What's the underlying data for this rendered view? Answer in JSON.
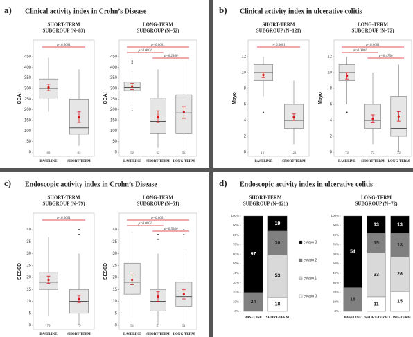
{
  "chart_data": [
    {
      "type": "box",
      "label": "a)",
      "title": "Clinical activity index in Crohn’s Disease",
      "box_color": "#e6e6e6",
      "mean_color": "#d7191c",
      "comparison_color": "#d7191c",
      "subplots": [
        {
          "subtitle": [
            "SHORT-TERM",
            "SUBGROUP (N=83)"
          ],
          "ylabel": "CDAI",
          "ylim": [
            0,
            450
          ],
          "yticks": [
            0,
            50,
            100,
            150,
            200,
            250,
            300,
            350,
            400,
            450
          ],
          "categories": [
            "BASELINE",
            "SHORT-TERM"
          ],
          "n": [
            83,
            83
          ],
          "boxes": [
            {
              "whislo": 190,
              "q1": 255,
              "med": 300,
              "q3": 345,
              "whishi": 445,
              "mean": 305,
              "mean_ci": [
                290,
                320
              ],
              "fliers": []
            },
            {
              "whislo": 30,
              "q1": 85,
              "med": 115,
              "q3": 250,
              "whishi": 390,
              "mean": 165,
              "mean_ci": [
                140,
                190
              ],
              "fliers": []
            }
          ],
          "comparisons": [
            {
              "label": "p<0.0001",
              "pair": [
                0,
                1
              ]
            }
          ]
        },
        {
          "subtitle": [
            "LONG-TERM",
            "SUBGROUP (N=52)"
          ],
          "ylabel": "CDAI",
          "ylim": [
            0,
            450
          ],
          "yticks": [
            0,
            50,
            100,
            150,
            200,
            250,
            300,
            350,
            400,
            450
          ],
          "categories": [
            "BASELINE",
            "SHORT-TERM",
            "LONG-TERM"
          ],
          "n": [
            52,
            52,
            52
          ],
          "boxes": [
            {
              "whislo": 230,
              "q1": 290,
              "med": 305,
              "q3": 330,
              "whishi": 380,
              "mean": 310,
              "mean_ci": [
                295,
                325
              ],
              "fliers": [
                195,
                420,
                430
              ]
            },
            {
              "whislo": 20,
              "q1": 90,
              "med": 145,
              "q3": 255,
              "whishi": 390,
              "mean": 165,
              "mean_ci": [
                140,
                195
              ],
              "fliers": []
            },
            {
              "whislo": 0,
              "q1": 90,
              "med": 185,
              "q3": 270,
              "whishi": 430,
              "mean": 190,
              "mean_ci": [
                160,
                215
              ],
              "fliers": []
            }
          ],
          "comparisons": [
            {
              "label": "p<0.0001",
              "pair": [
                0,
                2
              ]
            },
            {
              "label": "p<0.0001",
              "pair": [
                0,
                1
              ]
            },
            {
              "label": "p=0.2100",
              "pair": [
                1,
                2
              ]
            }
          ]
        }
      ]
    },
    {
      "type": "box",
      "label": "b)",
      "title": "Clinical activity index in ulcerative colitis",
      "box_color": "#e6e6e6",
      "mean_color": "#d7191c",
      "comparison_color": "#d7191c",
      "subplots": [
        {
          "subtitle": [
            "SHORT-TERM",
            "SUBGROUP (N=121)"
          ],
          "ylabel": "Mayo",
          "ylim": [
            0,
            12
          ],
          "yticks": [
            0,
            2,
            4,
            6,
            8,
            10,
            12
          ],
          "categories": [
            "BASELINE",
            "SHORT-TERM"
          ],
          "n": [
            121,
            121
          ],
          "boxes": [
            {
              "whislo": 7,
              "q1": 9,
              "med": 10,
              "q3": 11,
              "whishi": 12,
              "mean": 9.7,
              "mean_ci": [
                9.4,
                10
              ],
              "fliers": [
                5
              ]
            },
            {
              "whislo": 1,
              "q1": 3,
              "med": 4,
              "q3": 6,
              "whishi": 9,
              "mean": 4.4,
              "mean_ci": [
                4,
                4.8
              ],
              "fliers": []
            }
          ],
          "comparisons": [
            {
              "label": "p<0.0001",
              "pair": [
                0,
                1
              ]
            }
          ]
        },
        {
          "subtitle": [
            "LONG-TERM",
            "SUBGROUP (N=72)"
          ],
          "ylabel": "Mayo",
          "ylim": [
            0,
            12
          ],
          "yticks": [
            0,
            2,
            4,
            6,
            8,
            10,
            12
          ],
          "categories": [
            "BASELINE",
            "SHORT-TERM",
            "LONG-TERM"
          ],
          "n": [
            72,
            72,
            72
          ],
          "boxes": [
            {
              "whislo": 6,
              "q1": 9,
              "med": 10,
              "q3": 11,
              "whishi": 12,
              "mean": 9.6,
              "mean_ci": [
                9.2,
                10
              ],
              "fliers": [
                5
              ]
            },
            {
              "whislo": 1,
              "q1": 3,
              "med": 4,
              "q3": 6,
              "whishi": 10,
              "mean": 4.2,
              "mean_ci": [
                3.7,
                4.7
              ],
              "fliers": []
            },
            {
              "whislo": 0,
              "q1": 2,
              "med": 3,
              "q3": 7,
              "whishi": 11,
              "mean": 4.5,
              "mean_ci": [
                3.9,
                5.1
              ],
              "fliers": []
            }
          ],
          "comparisons": [
            {
              "label": "p<0.0001",
              "pair": [
                0,
                2
              ]
            },
            {
              "label": "p<0.0001",
              "pair": [
                0,
                1
              ]
            },
            {
              "label": "p=0.4750",
              "pair": [
                1,
                2
              ]
            }
          ]
        }
      ]
    },
    {
      "type": "box",
      "label": "c)",
      "title": "Endoscopic activity index in Crohn’s Disease",
      "box_color": "#e6e6e6",
      "mean_color": "#d7191c",
      "comparison_color": "#d7191c",
      "subplots": [
        {
          "subtitle": [
            "SHORT-TERM",
            "SUBGROUP (N=79)"
          ],
          "ylabel": "SESCD",
          "ylim": [
            0,
            40
          ],
          "yticks": [
            0,
            5,
            10,
            15,
            20,
            25,
            30,
            35,
            40
          ],
          "categories": [
            "BASELINE",
            "SHORT-TERM"
          ],
          "n": [
            79,
            79
          ],
          "boxes": [
            {
              "whislo": 4,
              "q1": 15,
              "med": 18,
              "q3": 22,
              "whishi": 37,
              "mean": 19,
              "mean_ci": [
                17.5,
                20.5
              ],
              "fliers": []
            },
            {
              "whislo": 0,
              "q1": 5,
              "med": 10,
              "q3": 15,
              "whishi": 30,
              "mean": 11,
              "mean_ci": [
                9.5,
                12.5
              ],
              "fliers": [
                38,
                40
              ]
            }
          ],
          "comparisons": [
            {
              "label": "p<0.0001",
              "pair": [
                0,
                1
              ]
            }
          ]
        },
        {
          "subtitle": [
            "LONG-TERM",
            "SUBGROUP (N=51)"
          ],
          "ylabel": "SESCD",
          "ylim": [
            0,
            40
          ],
          "yticks": [
            0,
            5,
            10,
            15,
            20,
            25,
            30,
            35,
            40
          ],
          "categories": [
            "BASELINE",
            "SHORT-TERM",
            "LONG-TERM"
          ],
          "n": [
            51,
            51,
            51
          ],
          "boxes": [
            {
              "whislo": 4,
              "q1": 13,
              "med": 18,
              "q3": 26,
              "whishi": 39,
              "mean": 19,
              "mean_ci": [
                17,
                21
              ],
              "fliers": []
            },
            {
              "whislo": 0,
              "q1": 6,
              "med": 10,
              "q3": 15,
              "whishi": 30,
              "mean": 12,
              "mean_ci": [
                10,
                14
              ],
              "fliers": [
                36,
                38
              ]
            },
            {
              "whislo": 0,
              "q1": 8,
              "med": 12,
              "q3": 18,
              "whishi": 31,
              "mean": 13,
              "mean_ci": [
                11,
                15
              ],
              "fliers": [
                38,
                40
              ]
            }
          ],
          "comparisons": [
            {
              "label": "p<0.0001",
              "pair": [
                0,
                2
              ]
            },
            {
              "label": "p<0.0001",
              "pair": [
                0,
                1
              ]
            },
            {
              "label": "p=0.5930",
              "pair": [
                1,
                2
              ]
            }
          ]
        }
      ]
    },
    {
      "type": "stacked_bar",
      "label": "d)",
      "title": "Endoscopic activity index in ulcerative colitis",
      "percent_stacked": true,
      "series": [
        {
          "name": "eMayo 0",
          "color": "#ffffff",
          "text_color": "#222222"
        },
        {
          "name": "eMayo 1",
          "color": "#d9d9d9",
          "text_color": "#222222"
        },
        {
          "name": "eMayo 2",
          "color": "#808080",
          "text_color": "#222222"
        },
        {
          "name": "eMayo 3",
          "color": "#000000",
          "text_color": "#ffffff"
        }
      ],
      "subplots": [
        {
          "subtitle": [
            "SHORT-TERM",
            "SUBGROUP (N=121)"
          ],
          "categories": [
            "BASELINE",
            "SHORT-TERM"
          ],
          "ylim": [
            0,
            100
          ],
          "yticks": [
            {
              "value": 0,
              "label": "0%"
            },
            {
              "value": 10,
              "label": "10%"
            },
            {
              "value": 20,
              "label": "20%"
            },
            {
              "value": 30,
              "label": "30%"
            },
            {
              "value": 40,
              "label": "40%"
            },
            {
              "value": 50,
              "label": "50%"
            },
            {
              "value": 60,
              "label": "60%"
            },
            {
              "value": 70,
              "label": "70%"
            },
            {
              "value": 80,
              "label": "80%"
            },
            {
              "value": 90,
              "label": "90%"
            },
            {
              "value": 100,
              "label": "100%"
            }
          ],
          "values": [
            [
              0,
              18
            ],
            [
              0,
              53
            ],
            [
              24,
              30
            ],
            [
              97,
              19
            ]
          ]
        },
        {
          "subtitle": [
            "LONG-TERM",
            "SUBGROUP (N=72)"
          ],
          "categories": [
            "BASELINE",
            "SHORT-TERM",
            "LONG-TERM"
          ],
          "ylim": [
            0,
            100
          ],
          "yticks": [
            {
              "value": 0,
              "label": "0%"
            },
            {
              "value": 10,
              "label": "10%"
            },
            {
              "value": 20,
              "label": "20%"
            },
            {
              "value": 30,
              "label": "30%"
            },
            {
              "value": 40,
              "label": "40%"
            },
            {
              "value": 50,
              "label": "50%"
            },
            {
              "value": 60,
              "label": "60%"
            },
            {
              "value": 70,
              "label": "70%"
            },
            {
              "value": 80,
              "label": "80%"
            },
            {
              "value": 90,
              "label": "90%"
            },
            {
              "value": 100,
              "label": "100%"
            }
          ],
          "values": [
            [
              0,
              11,
              15
            ],
            [
              0,
              33,
              26
            ],
            [
              18,
              15,
              18
            ],
            [
              54,
              13,
              13
            ]
          ]
        }
      ]
    }
  ]
}
